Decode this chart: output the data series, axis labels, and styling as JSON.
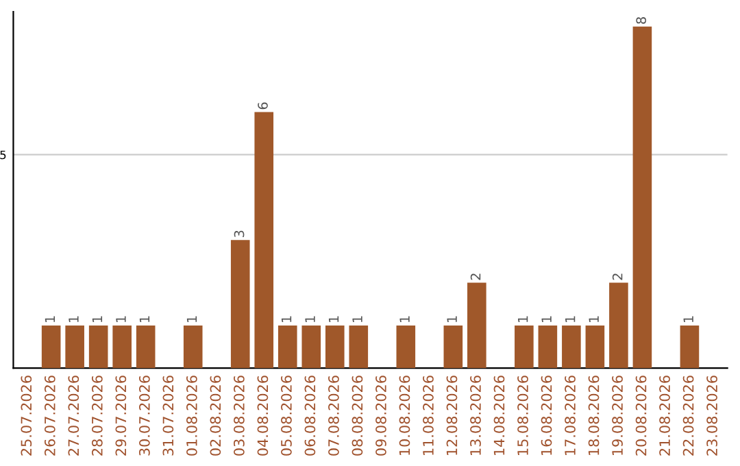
{
  "chart_data": {
    "type": "bar",
    "categories": [
      "25.07.2026",
      "26.07.2026",
      "27.07.2026",
      "28.07.2026",
      "29.07.2026",
      "30.07.2026",
      "31.07.2026",
      "01.08.2026",
      "02.08.2026",
      "03.08.2026",
      "04.08.2026",
      "05.08.2026",
      "06.08.2026",
      "07.08.2026",
      "08.08.2026",
      "09.08.2026",
      "10.08.2026",
      "11.08.2026",
      "12.08.2026",
      "13.08.2026",
      "14.08.2026",
      "15.08.2026",
      "16.08.2026",
      "17.08.2026",
      "18.08.2026",
      "19.08.2026",
      "20.08.2026",
      "21.08.2026",
      "22.08.2026",
      "23.08.2026"
    ],
    "values": [
      0,
      1,
      1,
      1,
      1,
      1,
      0,
      1,
      0,
      3,
      6,
      1,
      1,
      1,
      1,
      0,
      1,
      0,
      1,
      2,
      0,
      1,
      1,
      1,
      1,
      2,
      8,
      0,
      1,
      0
    ],
    "value_labels": [
      null,
      "1",
      "1",
      "1",
      "1",
      "1",
      null,
      "1",
      null,
      "3",
      "6",
      "1",
      "1",
      "1",
      "1",
      null,
      "1",
      null,
      "1",
      "2",
      null,
      "1",
      "1",
      "1",
      "1",
      "2",
      "8",
      null,
      "1",
      null
    ],
    "color": "#a0582a",
    "ylim": [
      0,
      8.35
    ],
    "yticks": [
      5
    ],
    "grid": "y"
  }
}
